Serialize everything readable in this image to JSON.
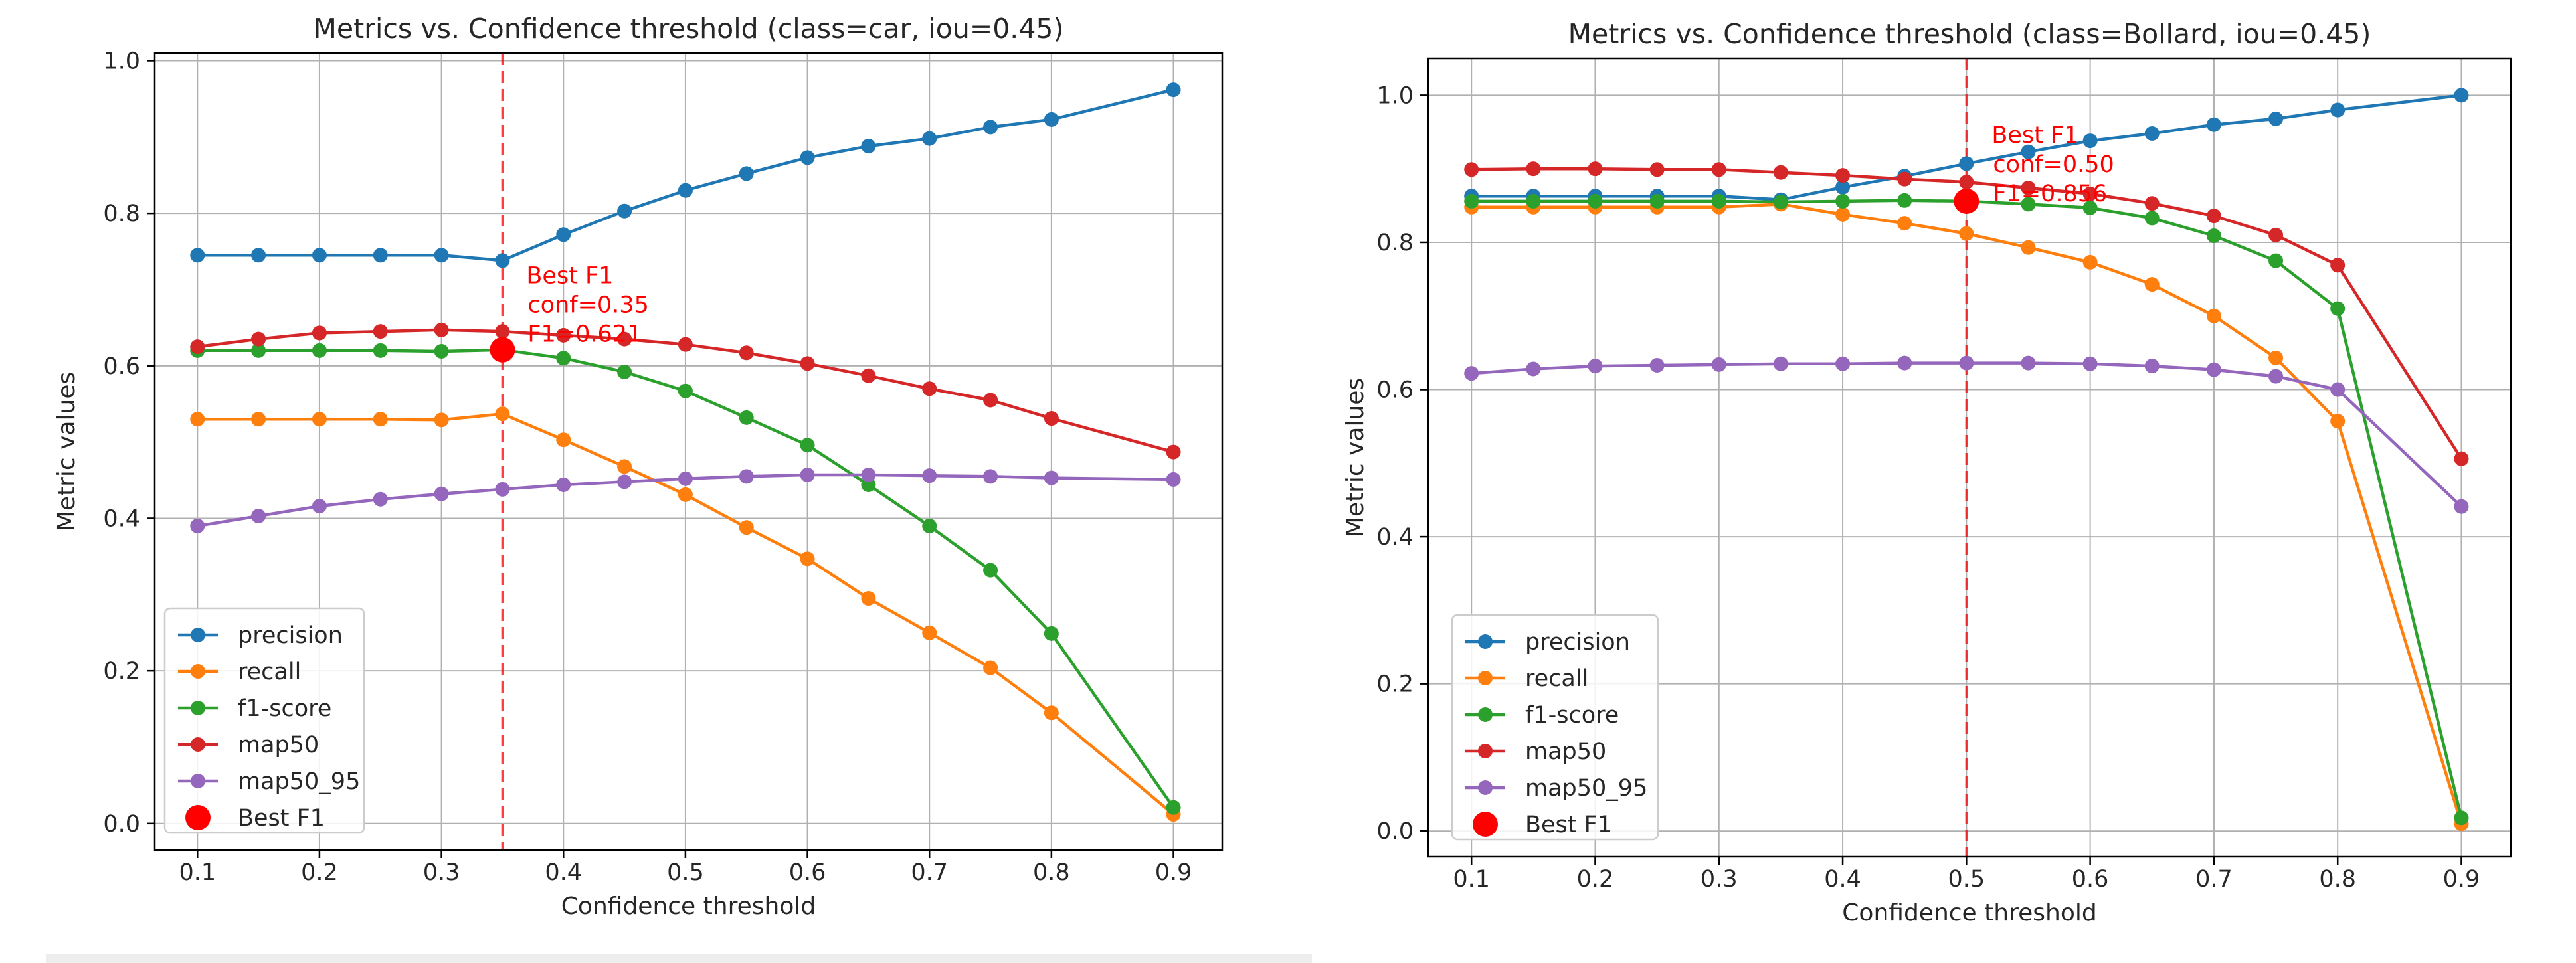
{
  "figure": "two-panel line chart",
  "colors": {
    "precision": "#1f77b4",
    "recall": "#ff7f0e",
    "f1-score": "#2ca02c",
    "map50": "#d62728",
    "map50_95": "#9467bd",
    "best": "#ff0000",
    "grid": "#b0b0b0",
    "text": "#262626"
  },
  "legend": {
    "precision": "precision",
    "recall": "recall",
    "f1": "f1-score",
    "map50": "map50",
    "map50_95": "map50_95",
    "best": "Best F1"
  },
  "chart_data": [
    {
      "type": "line",
      "title": "Metrics vs. Confidence threshold (class=car, iou=0.45)",
      "xlabel": "Confidence threshold",
      "ylabel": "Metric values",
      "x": [
        0.1,
        0.15,
        0.2,
        0.25,
        0.3,
        0.35,
        0.4,
        0.45,
        0.5,
        0.55,
        0.6,
        0.65,
        0.7,
        0.75,
        0.8,
        0.9
      ],
      "xticks": [
        "0.1",
        "0.2",
        "0.3",
        "0.4",
        "0.5",
        "0.6",
        "0.7",
        "0.8",
        "0.9"
      ],
      "yticks": [
        "0.0",
        "0.2",
        "0.4",
        "0.6",
        "0.8",
        "1.0"
      ],
      "xlim": [
        0.065,
        0.94
      ],
      "ylim": [
        -0.035,
        1.01
      ],
      "grid": true,
      "legend_position": "lower-left",
      "series": [
        {
          "name": "precision",
          "values": [
            0.745,
            0.745,
            0.745,
            0.745,
            0.745,
            0.738,
            0.772,
            0.803,
            0.83,
            0.852,
            0.873,
            0.888,
            0.898,
            0.913,
            0.923,
            0.962
          ]
        },
        {
          "name": "recall",
          "values": [
            0.53,
            0.53,
            0.53,
            0.53,
            0.529,
            0.537,
            0.503,
            0.468,
            0.431,
            0.388,
            0.347,
            0.295,
            0.25,
            0.204,
            0.145,
            0.012
          ]
        },
        {
          "name": "f1-score",
          "values": [
            0.62,
            0.62,
            0.62,
            0.62,
            0.619,
            0.621,
            0.61,
            0.592,
            0.567,
            0.532,
            0.496,
            0.444,
            0.39,
            0.332,
            0.249,
            0.021
          ]
        },
        {
          "name": "map50",
          "values": [
            0.625,
            0.635,
            0.643,
            0.645,
            0.647,
            0.645,
            0.64,
            0.635,
            0.628,
            0.617,
            0.603,
            0.587,
            0.57,
            0.555,
            0.531,
            0.487
          ]
        },
        {
          "name": "map50_95",
          "values": [
            0.39,
            0.403,
            0.416,
            0.425,
            0.432,
            0.438,
            0.444,
            0.448,
            0.452,
            0.455,
            0.457,
            0.457,
            0.456,
            0.455,
            0.453,
            0.451
          ]
        }
      ],
      "best": {
        "x": 0.35,
        "y": 0.621,
        "lines": [
          "Best F1",
          "conf=0.35",
          "F1=0.621"
        ]
      }
    },
    {
      "type": "line",
      "title": "Metrics vs. Confidence threshold (class=Bollard, iou=0.45)",
      "xlabel": "Confidence threshold",
      "ylabel": "Metric values",
      "x": [
        0.1,
        0.15,
        0.2,
        0.25,
        0.3,
        0.35,
        0.4,
        0.45,
        0.5,
        0.55,
        0.6,
        0.65,
        0.7,
        0.75,
        0.8,
        0.9
      ],
      "xticks": [
        "0.1",
        "0.2",
        "0.3",
        "0.4",
        "0.5",
        "0.6",
        "0.7",
        "0.8",
        "0.9"
      ],
      "yticks": [
        "0.0",
        "0.2",
        "0.4",
        "0.6",
        "0.8",
        "1.0"
      ],
      "xlim": [
        0.065,
        0.94
      ],
      "ylim": [
        -0.035,
        1.05
      ],
      "grid": true,
      "legend_position": "lower-left",
      "series": [
        {
          "name": "precision",
          "values": [
            0.863,
            0.863,
            0.863,
            0.863,
            0.863,
            0.858,
            0.875,
            0.89,
            0.907,
            0.923,
            0.938,
            0.948,
            0.96,
            0.968,
            0.98,
            1.0
          ]
        },
        {
          "name": "recall",
          "values": [
            0.848,
            0.848,
            0.848,
            0.848,
            0.848,
            0.852,
            0.838,
            0.826,
            0.812,
            0.793,
            0.773,
            0.743,
            0.7,
            0.643,
            0.557,
            0.01
          ]
        },
        {
          "name": "f1-score",
          "values": [
            0.856,
            0.856,
            0.856,
            0.856,
            0.856,
            0.855,
            0.856,
            0.857,
            0.856,
            0.852,
            0.847,
            0.833,
            0.809,
            0.775,
            0.71,
            0.018
          ]
        },
        {
          "name": "map50",
          "values": [
            0.899,
            0.9,
            0.9,
            0.899,
            0.899,
            0.895,
            0.891,
            0.886,
            0.882,
            0.874,
            0.866,
            0.853,
            0.836,
            0.81,
            0.769,
            0.506
          ]
        },
        {
          "name": "map50_95",
          "values": [
            0.622,
            0.628,
            0.632,
            0.633,
            0.634,
            0.635,
            0.635,
            0.636,
            0.636,
            0.636,
            0.635,
            0.632,
            0.627,
            0.618,
            0.6,
            0.441
          ]
        }
      ],
      "best": {
        "x": 0.5,
        "y": 0.856,
        "lines": [
          "Best F1",
          "conf=0.50",
          "F1=0.856"
        ]
      }
    }
  ]
}
